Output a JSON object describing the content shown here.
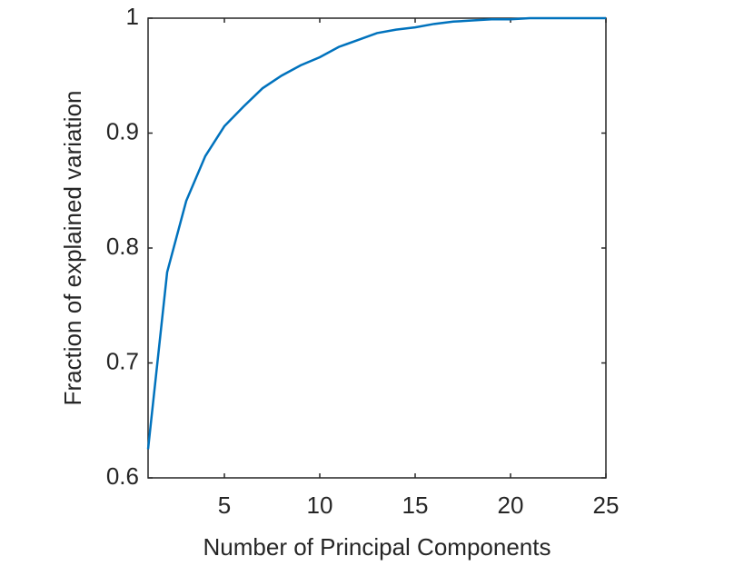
{
  "chart_data": {
    "type": "line",
    "xlabel": "Number of Principal Components",
    "ylabel": "Fraction of explained variation",
    "x": [
      1,
      2,
      3,
      4,
      5,
      6,
      7,
      8,
      9,
      10,
      11,
      12,
      13,
      14,
      15,
      16,
      17,
      18,
      19,
      20,
      21,
      22,
      23,
      24,
      25
    ],
    "series": [
      {
        "color": "#0072bd",
        "values": [
          0.625,
          0.779,
          0.841,
          0.88,
          0.906,
          0.923,
          0.939,
          0.95,
          0.959,
          0.966,
          0.975,
          0.981,
          0.987,
          0.99,
          0.992,
          0.995,
          0.997,
          0.998,
          0.999,
          0.999,
          1,
          1,
          1,
          1,
          1
        ]
      }
    ],
    "xlim": [
      1,
      25
    ],
    "xticks": [
      5,
      10,
      15,
      20,
      25
    ],
    "ylim": [
      0.6,
      1
    ],
    "yticks": [
      0.6,
      0.7,
      0.8,
      0.9,
      1
    ]
  }
}
